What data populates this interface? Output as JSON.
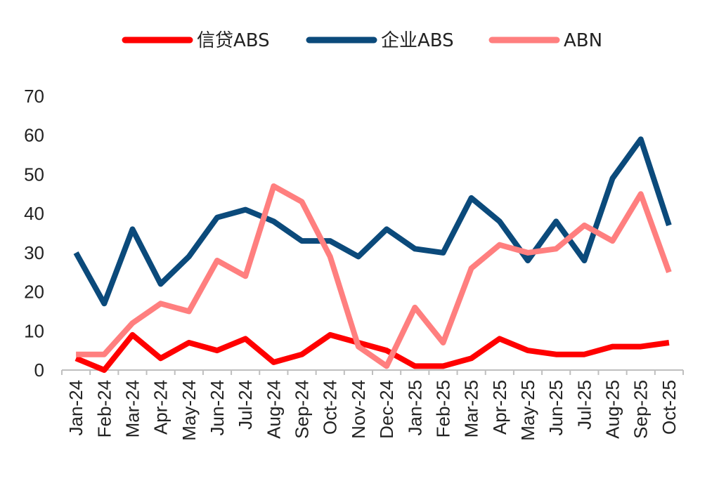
{
  "chart_data": {
    "type": "line",
    "title": "",
    "xlabel": "",
    "ylabel": "",
    "categories": [
      "Jan-24",
      "Feb-24",
      "Mar-24",
      "Apr-24",
      "May-24",
      "Jun-24",
      "Jul-24",
      "Aug-24",
      "Sep-24",
      "Oct-24",
      "Nov-24",
      "Dec-24",
      "Jan-25",
      "Feb-25",
      "Mar-25",
      "Apr-25",
      "May-25",
      "Jun-25",
      "Jul-25",
      "Aug-25",
      "Sep-25",
      "Oct-25"
    ],
    "ylim": [
      0,
      70
    ],
    "yticks": [
      0,
      10,
      20,
      30,
      40,
      50,
      60,
      70
    ],
    "grid": false,
    "legend_position": "top",
    "series": [
      {
        "name": "信贷ABS",
        "color": "#ff0000",
        "values": [
          3,
          0,
          9,
          3,
          7,
          5,
          8,
          2,
          4,
          9,
          7,
          5,
          1,
          1,
          3,
          8,
          5,
          4,
          4,
          6,
          6,
          7
        ]
      },
      {
        "name": "企业ABS",
        "color": "#0b4a7b",
        "values": [
          30,
          17,
          36,
          22,
          29,
          39,
          41,
          38,
          33,
          33,
          29,
          36,
          31,
          30,
          44,
          38,
          28,
          38,
          28,
          49,
          59,
          37
        ]
      },
      {
        "name": "ABN",
        "color": "#ff7f7f",
        "values": [
          4,
          4,
          12,
          17,
          15,
          28,
          24,
          47,
          43,
          29,
          6,
          1,
          16,
          7,
          26,
          32,
          30,
          31,
          37,
          33,
          45,
          25
        ]
      }
    ]
  }
}
